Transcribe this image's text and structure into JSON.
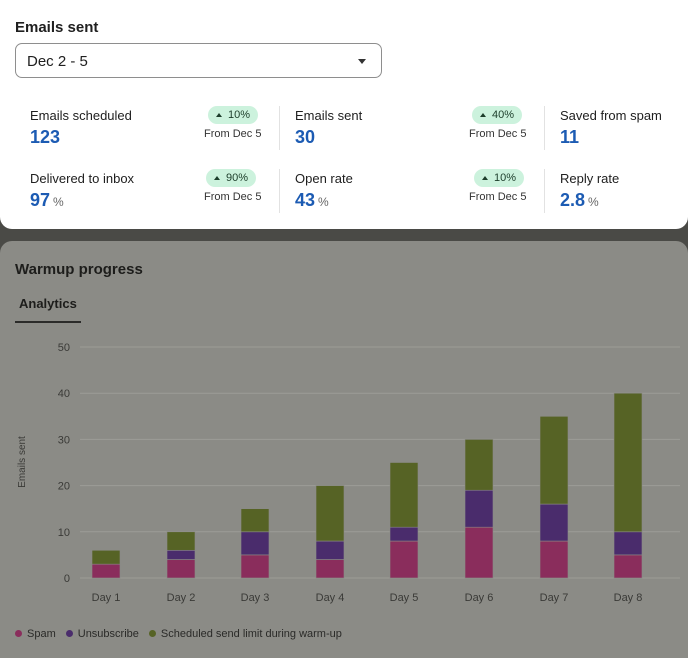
{
  "summary": {
    "title": "Emails sent",
    "range_select": {
      "value": "Dec 2 - 5"
    },
    "stats": [
      {
        "label": "Emails scheduled",
        "value": "123",
        "unit": "",
        "badge": "10%",
        "from": "From Dec 5"
      },
      {
        "label": "Emails sent",
        "value": "30",
        "unit": "",
        "badge": "40%",
        "from": "From Dec 5"
      },
      {
        "label": "Saved from spam",
        "value": "11",
        "unit": ""
      },
      {
        "label": "Delivered to inbox",
        "value": "97",
        "unit": "%",
        "badge": "90%",
        "from": "From Dec 5"
      },
      {
        "label": "Open rate",
        "value": "43",
        "unit": "%",
        "badge": "10%",
        "from": "From Dec 5"
      },
      {
        "label": "Reply rate",
        "value": "2.8",
        "unit": "%"
      }
    ]
  },
  "warmup": {
    "title": "Warmup progress",
    "tab": "Analytics"
  },
  "chart_data": {
    "type": "bar",
    "stacked": true,
    "categories": [
      "Day 1",
      "Day 2",
      "Day 3",
      "Day 4",
      "Day 5",
      "Day 6",
      "Day 7",
      "Day 8"
    ],
    "series": [
      {
        "name": "Spam",
        "color": "#8a2d5c",
        "values": [
          3,
          4,
          5,
          4,
          8,
          11,
          8,
          5
        ]
      },
      {
        "name": "Unsubscribe",
        "color": "#4a2c6c",
        "values": [
          0,
          2,
          5,
          4,
          3,
          8,
          8,
          5
        ]
      },
      {
        "name": "Scheduled send limit during warm-up",
        "color": "#566325",
        "values": [
          3,
          4,
          5,
          12,
          14,
          11,
          19,
          30
        ]
      }
    ],
    "ylabel": "Emails sent",
    "xlabel": "",
    "ylim": [
      0,
      50
    ],
    "yticks": [
      0,
      10,
      20,
      30,
      40,
      50
    ],
    "grid": true,
    "legend": "bottom-left"
  }
}
